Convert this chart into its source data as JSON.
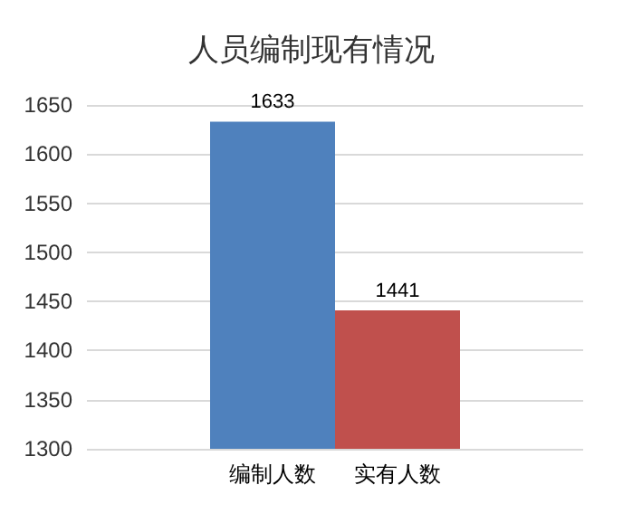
{
  "chart_data": {
    "type": "bar",
    "title": "人员编制现有情况",
    "categories": [
      "编制人数",
      "实有人数"
    ],
    "values": [
      1633,
      1441
    ],
    "colors": [
      "#4f81bd",
      "#c0504d"
    ],
    "ylim": [
      1300,
      1650
    ],
    "yticks": [
      1300,
      1350,
      1400,
      1450,
      1500,
      1550,
      1600,
      1650
    ],
    "grid": "y",
    "data_labels": true
  }
}
